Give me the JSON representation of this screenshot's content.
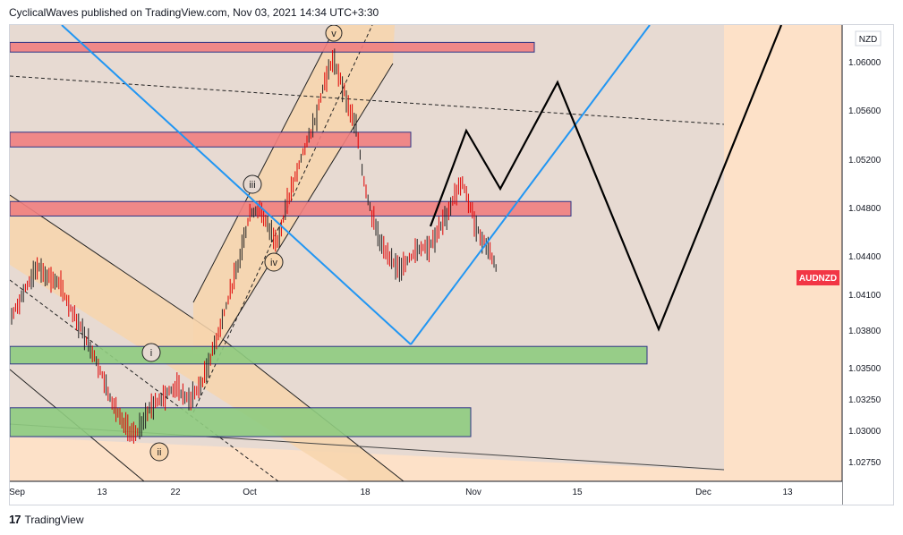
{
  "header": {
    "text": "CyclicalWaves published on TradingView.com, Nov 03, 2021 14:34 UTC+3:30"
  },
  "footer": {
    "logo": "17",
    "brand": "TradingView"
  },
  "colors": {
    "candle": "#e00000",
    "zone_red_fill": "#f08080",
    "zone_red_stroke": "#1a237e",
    "zone_green_fill": "#8fcc80",
    "zone_green_stroke": "#1a237e",
    "channel_fill": "#f7d5ad",
    "background_area": "#e7dad2",
    "future_area": "#fde1c8",
    "blue_line": "#2196f3",
    "badge_bg": "#f23645"
  },
  "chart_data": {
    "type": "candlestick",
    "symbol": "AUDNZD",
    "currency": "NZD",
    "price_ticks": [
      "1.06000",
      "1.05600",
      "1.05200",
      "1.04800",
      "1.04400",
      "1.04100",
      "1.03800",
      "1.03500",
      "1.03250",
      "1.03000",
      "1.02750"
    ],
    "time_ticks": [
      "Sep",
      "13",
      "22",
      "Oct",
      "18",
      "Nov",
      "15",
      "Dec",
      "13"
    ],
    "price_badge": "AUDNZD",
    "wave_labels": [
      "v",
      "iii",
      "iv",
      "i",
      "ii"
    ],
    "path_projection": [
      {
        "date": "2021-10-28",
        "price": 1.0545
      },
      {
        "date": "2021-11-01",
        "price": 1.0495
      },
      {
        "date": "2021-11-08",
        "price": 1.058
      },
      {
        "date": "2021-11-24",
        "price": 1.0385
      },
      {
        "date": "2021-12-15",
        "price": 1.064
      }
    ],
    "zones": [
      {
        "color": "red",
        "top": 1.0616,
        "bottom": 1.0608
      },
      {
        "color": "red",
        "top": 1.0542,
        "bottom": 1.053
      },
      {
        "color": "red",
        "top": 1.0485,
        "bottom": 1.0473
      },
      {
        "color": "green",
        "top": 1.0367,
        "bottom": 1.0353
      },
      {
        "color": "green",
        "top": 1.0318,
        "bottom": 1.0295
      }
    ],
    "candles": []
  }
}
